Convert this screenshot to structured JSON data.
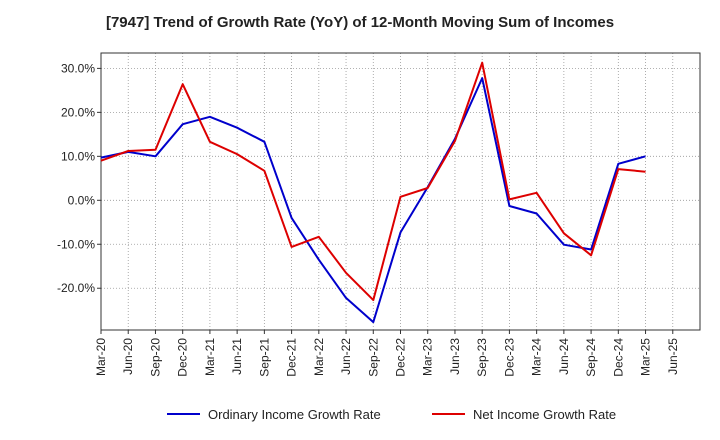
{
  "chart_data": {
    "type": "line",
    "title": "[7947]  Trend of Growth Rate (YoY) of 12-Month Moving Sum of Incomes",
    "xlabel": "",
    "ylabel": "",
    "ylim": [
      -29.5,
      33.5
    ],
    "y_ticks": [
      30,
      20,
      10,
      0,
      -10,
      -20
    ],
    "y_tick_labels": [
      "30.0%",
      "20.0%",
      "10.0%",
      "0.0%",
      "-10.0%",
      "-20.0%"
    ],
    "categories": [
      "Mar-20",
      "Jun-20",
      "Sep-20",
      "Dec-20",
      "Mar-21",
      "Jun-21",
      "Sep-21",
      "Dec-21",
      "Mar-22",
      "Jun-22",
      "Sep-22",
      "Dec-22",
      "Mar-23",
      "Jun-23",
      "Sep-23",
      "Dec-23",
      "Mar-24",
      "Jun-24",
      "Sep-24",
      "Dec-24",
      "Mar-25",
      "Jun-25"
    ],
    "grid": true,
    "legend_position": "bottom",
    "series": [
      {
        "name": "Ordinary Income Growth Rate",
        "color": "#0000cc",
        "values": [
          9.7,
          11.0,
          10.0,
          17.3,
          19.0,
          16.5,
          13.3,
          -4.0,
          -13.5,
          -22.2,
          -27.7,
          -7.3,
          3.0,
          14.0,
          27.8,
          -1.3,
          -3.0,
          -10.1,
          -11.2,
          8.3,
          10.0,
          null
        ]
      },
      {
        "name": "Net Income Growth Rate",
        "color": "#dd0000",
        "values": [
          9.0,
          11.2,
          11.5,
          26.4,
          13.3,
          10.5,
          6.7,
          -10.6,
          -8.3,
          -16.5,
          -22.7,
          0.8,
          2.8,
          13.5,
          31.3,
          0.2,
          1.7,
          -7.5,
          -12.5,
          7.1,
          6.5,
          null
        ]
      }
    ]
  }
}
